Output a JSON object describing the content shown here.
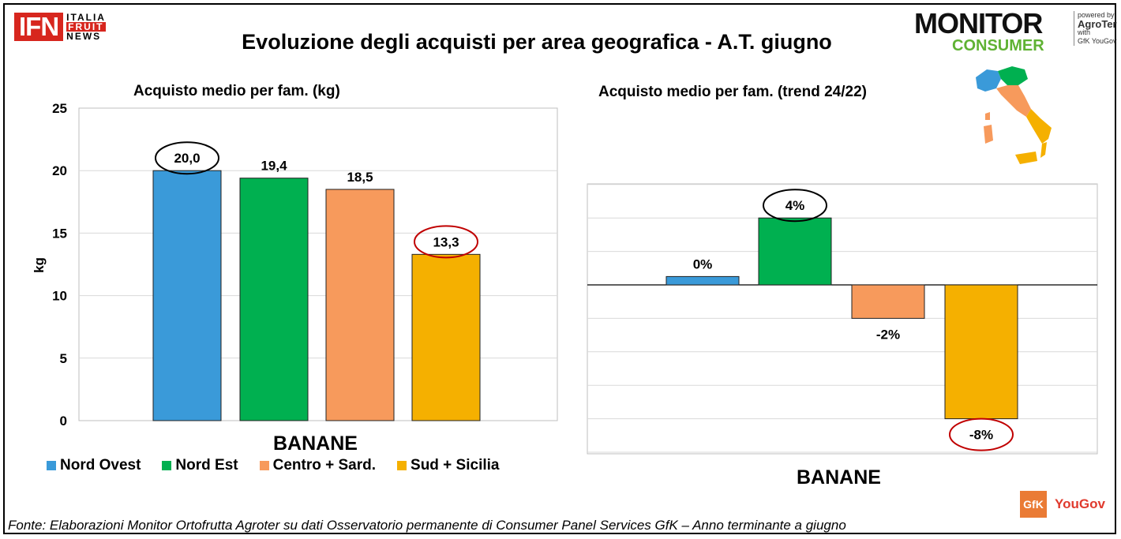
{
  "header": {
    "title": "Evoluzione degli acquisti per area geografica - A.T. giugno",
    "ifn_logo": {
      "mark": "IFN",
      "line1": "ITALIA",
      "line2": "FRUIT",
      "line3": "NEWS"
    },
    "monitor_logo": {
      "line1": "MONITOR",
      "line2": "CONSUMER",
      "powered": "powered by",
      "brand": "AgroTer",
      "with": "with",
      "partners": "GfK YouGov"
    }
  },
  "colors": {
    "nord_ovest": "#3a9ad9",
    "nord_est": "#00b050",
    "centro_sard": "#f79a5c",
    "sud_sicilia": "#f5b000",
    "highlight_black": "#000000",
    "highlight_red": "#c00000"
  },
  "legend": [
    {
      "label": "Nord Ovest",
      "color": "#3a9ad9"
    },
    {
      "label": "Nord Est",
      "color": "#00b050"
    },
    {
      "label": "Centro + Sard.",
      "color": "#f79a5c"
    },
    {
      "label": "Sud + Sicilia",
      "color": "#f5b000"
    }
  ],
  "chart_data": [
    {
      "type": "bar",
      "title": "Acquisto  medio  per  fam.  (kg)",
      "ylabel": "kg",
      "xlabel": "BANANE",
      "ylim": [
        0,
        25
      ],
      "yticks": [
        "0",
        "5",
        "10",
        "15",
        "20",
        "25"
      ],
      "grid": true,
      "categories": [
        "Nord Ovest",
        "Nord Est",
        "Centro + Sard.",
        "Sud + Sicilia"
      ],
      "values": [
        20.0,
        19.4,
        18.5,
        13.3
      ],
      "labels": [
        "20,0",
        "19,4",
        "18,5",
        "13,3"
      ],
      "circled": [
        "black",
        null,
        null,
        "red"
      ]
    },
    {
      "type": "bar",
      "title": "Acquisto  medio  per  fam.  (trend 24/22)",
      "xlabel": "BANANE",
      "grid": true,
      "categories": [
        "Nord Ovest",
        "Nord Est",
        "Centro + Sard.",
        "Sud + Sicilia"
      ],
      "values": [
        0.5,
        4,
        -2,
        -8
      ],
      "labels": [
        "0%",
        "4%",
        "-2%",
        "-8%"
      ],
      "circled": [
        null,
        "black",
        null,
        "red"
      ]
    }
  ],
  "footer": {
    "source": "Fonte: Elaborazioni Monitor Ortofrutta Agroter su dati Osservatorio permanente di Consumer Panel Services GfK – Anno terminante a giugno",
    "gfk": "GfK",
    "yougov": "YouGov"
  }
}
